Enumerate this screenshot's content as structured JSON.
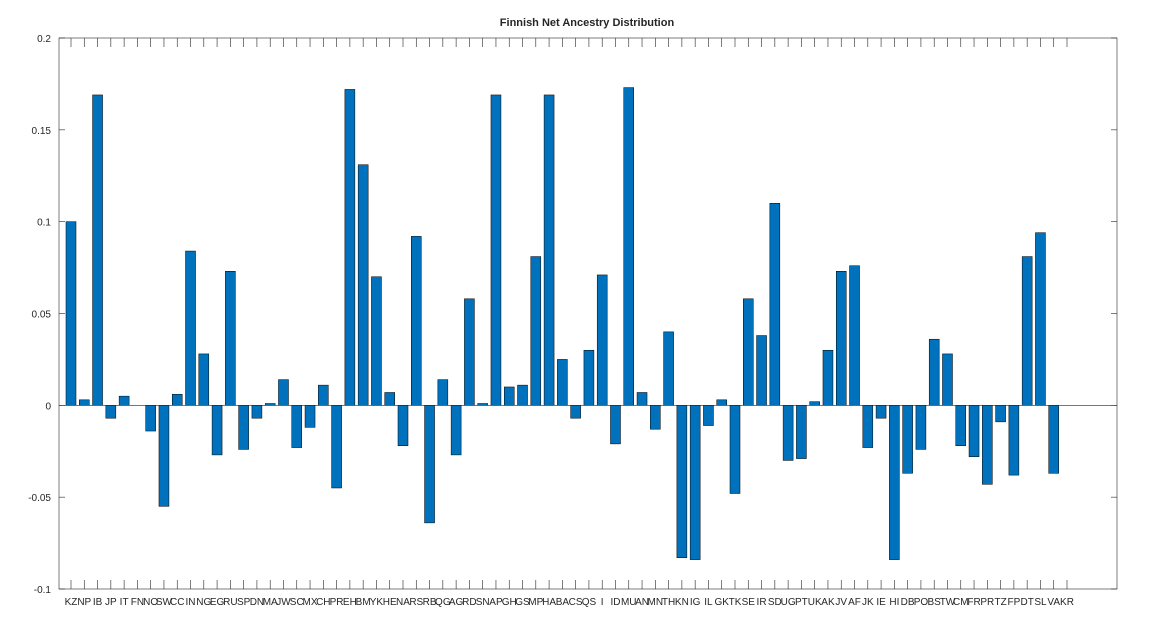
{
  "chart_data": {
    "type": "bar",
    "title": "Finnish Net Ancestry Distribution",
    "xlabel": "",
    "ylabel": "",
    "ylim": [
      -0.1,
      0.2
    ],
    "yticks": [
      "-0.1",
      "-0.05",
      "0",
      "0.05",
      "0.1",
      "0.15",
      "0.2"
    ],
    "bar_color": "#0072bd",
    "bar_edge_color": "#000000",
    "categories": [
      "KZ",
      "NP",
      "IB",
      "JP",
      "IT",
      "FN",
      "NO",
      "SW",
      "CC",
      "IN",
      "NG",
      "EG",
      "RU",
      "SP",
      "DN",
      "MA",
      "JW",
      "SC",
      "MX",
      "CH",
      "PR",
      "EH",
      "BM",
      "YK",
      "HE",
      "NA",
      "RS",
      "RB",
      "QG",
      "AG",
      "RD",
      "SN",
      "AP",
      "GH",
      "GS",
      "MP",
      "HA",
      "BA",
      "CS",
      "QS",
      "I",
      "ID",
      "MU",
      "AN",
      "MN",
      "TH",
      "KN",
      "IG",
      "IL",
      "GK",
      "TK",
      "SE",
      "IR",
      "SD",
      "UG",
      "PT",
      "UK",
      "AK",
      "JV",
      "AF",
      "JK",
      "IE",
      "HI",
      "DB",
      "PO",
      "BS",
      "TW",
      "CM",
      "FR",
      "PR",
      "TZ",
      "FP",
      "DT",
      "SL",
      "VA",
      "KR"
    ],
    "values": [
      0.1,
      0.003,
      0.169,
      -0.007,
      0.005,
      0.0,
      -0.014,
      -0.055,
      0.006,
      0.084,
      0.028,
      -0.027,
      0.073,
      -0.024,
      -0.007,
      0.001,
      0.014,
      -0.023,
      -0.012,
      0.011,
      -0.045,
      0.172,
      0.131,
      0.07,
      0.007,
      -0.022,
      0.092,
      -0.064,
      0.014,
      -0.027,
      0.058,
      0.001,
      0.169,
      0.01,
      0.011,
      0.081,
      0.169,
      0.025,
      -0.007,
      0.03,
      0.071,
      -0.021,
      0.173,
      0.007,
      -0.013,
      0.04,
      -0.083,
      -0.084,
      -0.011,
      0.003,
      -0.048,
      0.058,
      0.038,
      0.11,
      -0.03,
      -0.029,
      0.002,
      0.03,
      0.073,
      0.076,
      -0.023,
      -0.007,
      -0.084,
      -0.037,
      -0.024,
      0.036,
      0.028,
      -0.022,
      -0.028,
      -0.043,
      -0.009,
      -0.038,
      0.081,
      0.094,
      -0.037,
      0.0
    ],
    "grid": false,
    "legend": "none"
  }
}
